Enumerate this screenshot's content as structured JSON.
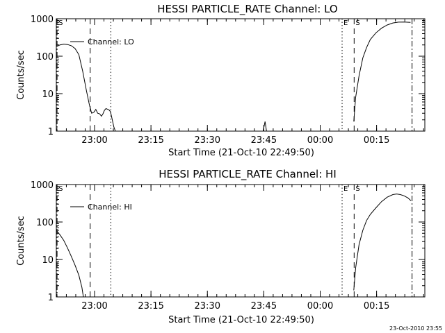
{
  "footer_timestamp": "23-Oct-2010 23:55",
  "chart_data": [
    {
      "type": "line",
      "title": "HESSI PARTICLE_RATE Channel: LO",
      "xlabel": "Start Time (21-Oct-10 22:49:50)",
      "ylabel": "Counts/sec",
      "yscale": "log",
      "ylim": [
        1,
        1000
      ],
      "xlim_minutes": [
        0,
        98
      ],
      "x_tick_labels": [
        "23:00",
        "23:15",
        "23:30",
        "23:45",
        "00:00",
        "00:15"
      ],
      "x_tick_minutes": [
        10.17,
        25.17,
        40.17,
        55.17,
        70.17,
        85.17
      ],
      "y_tick_labels": [
        "1",
        "10",
        "100",
        "1000"
      ],
      "y_tick_values": [
        1,
        10,
        100,
        1000
      ],
      "legend": {
        "label": "Channel: LO",
        "position": "top-left"
      },
      "markers": [
        {
          "label": "S",
          "x_min": 0.2,
          "style": "dashdot"
        },
        {
          "label": "",
          "x_min": 9.0,
          "style": "dashed"
        },
        {
          "label": "",
          "x_min": 14.5,
          "style": "dotted"
        },
        {
          "label": "E",
          "x_min": 76.0,
          "style": "dotted"
        },
        {
          "label": "S",
          "x_min": 79.2,
          "style": "dashed"
        },
        {
          "label": "",
          "x_min": 94.6,
          "style": "dashdot"
        }
      ],
      "series": [
        {
          "segments": [
            [
              [
                0,
                180
              ],
              [
                1,
                200
              ],
              [
                2,
                210
              ],
              [
                3,
                205
              ],
              [
                4,
                190
              ],
              [
                5,
                160
              ],
              [
                6,
                110
              ],
              [
                7,
                40
              ],
              [
                8,
                12
              ],
              [
                8.8,
                5
              ],
              [
                9.4,
                3
              ],
              [
                10,
                3.2
              ],
              [
                10.5,
                3.8
              ],
              [
                11,
                3
              ],
              [
                11.5,
                2.9
              ],
              [
                12,
                2.5
              ],
              [
                12.4,
                2.9
              ],
              [
                12.8,
                3.6
              ],
              [
                13.2,
                4
              ],
              [
                13.7,
                3.8
              ],
              [
                14,
                3.7
              ],
              [
                14.4,
                3.3
              ],
              [
                14.8,
                2.2
              ],
              [
                15.3,
                1.3
              ],
              [
                15.7,
                1
              ]
            ],
            [
              [
                55,
                1
              ],
              [
                55.5,
                1.8
              ],
              [
                55.9,
                1
              ]
            ],
            [
              [
                79.1,
                1.8
              ],
              [
                79.6,
                8
              ],
              [
                80.5,
                30
              ],
              [
                81.5,
                90
              ],
              [
                82.5,
                170
              ],
              [
                83.5,
                280
              ],
              [
                85,
                420
              ],
              [
                86.5,
                560
              ],
              [
                88,
                680
              ],
              [
                89.5,
                770
              ],
              [
                91,
                810
              ],
              [
                92.5,
                820
              ],
              [
                94.2,
                800
              ]
            ]
          ]
        }
      ]
    },
    {
      "type": "line",
      "title": "HESSI PARTICLE_RATE Channel: HI",
      "xlabel": "Start Time (21-Oct-10 22:49:50)",
      "ylabel": "Counts/sec",
      "yscale": "log",
      "ylim": [
        1,
        1000
      ],
      "xlim_minutes": [
        0,
        98
      ],
      "x_tick_labels": [
        "23:00",
        "23:15",
        "23:30",
        "23:45",
        "00:00",
        "00:15"
      ],
      "x_tick_minutes": [
        10.17,
        25.17,
        40.17,
        55.17,
        70.17,
        85.17
      ],
      "y_tick_labels": [
        "1",
        "10",
        "100",
        "1000"
      ],
      "y_tick_values": [
        1,
        10,
        100,
        1000
      ],
      "legend": {
        "label": "Channel: HI",
        "position": "top-left"
      },
      "markers": [
        {
          "label": "S",
          "x_min": 0.2,
          "style": "dashdot"
        },
        {
          "label": "",
          "x_min": 9.0,
          "style": "dashed"
        },
        {
          "label": "",
          "x_min": 14.5,
          "style": "dotted"
        },
        {
          "label": "E",
          "x_min": 76.0,
          "style": "dotted"
        },
        {
          "label": "S",
          "x_min": 79.2,
          "style": "dashed"
        },
        {
          "label": "",
          "x_min": 94.6,
          "style": "dashdot"
        }
      ],
      "series": [
        {
          "segments": [
            [
              [
                0,
                60
              ],
              [
                1,
                45
              ],
              [
                2,
                32
              ],
              [
                3,
                20
              ],
              [
                4,
                12
              ],
              [
                5,
                7
              ],
              [
                6,
                3.8
              ],
              [
                6.8,
                1.8
              ],
              [
                7.2,
                1
              ]
            ],
            [
              [
                79.1,
                1.5
              ],
              [
                79.6,
                6
              ],
              [
                80.5,
                25
              ],
              [
                81.5,
                60
              ],
              [
                82.5,
                110
              ],
              [
                83.5,
                160
              ],
              [
                85,
                240
              ],
              [
                86.5,
                350
              ],
              [
                88,
                460
              ],
              [
                89.5,
                540
              ],
              [
                90.5,
                560
              ],
              [
                91.5,
                540
              ],
              [
                92.5,
                500
              ],
              [
                93.5,
                440
              ],
              [
                94.3,
                370
              ]
            ]
          ]
        }
      ]
    }
  ]
}
